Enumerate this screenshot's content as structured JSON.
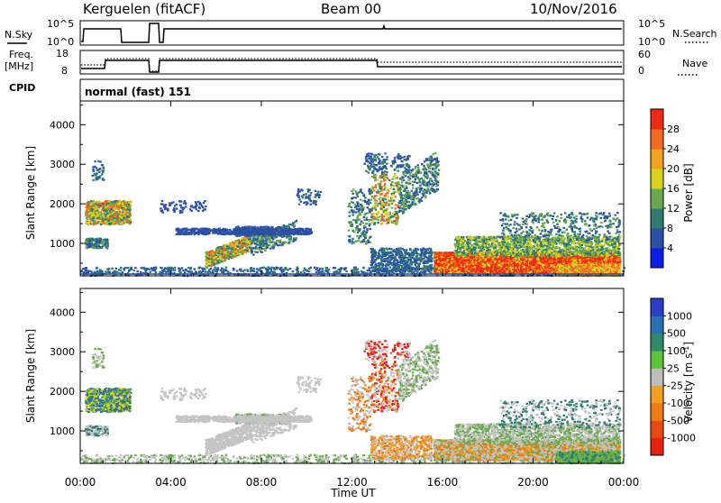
{
  "header": {
    "title": "Kerguelen (fitACF)",
    "beam": "Beam 00",
    "date": "10/Nov/2016"
  },
  "panels": {
    "nsky": {
      "left_label": "N.Sky",
      "left_ticks": [
        "10^5",
        "10^0"
      ],
      "right_ticks": [
        "10^5",
        "10^0"
      ],
      "right_label": "N.Search"
    },
    "freq": {
      "left_label_1": "Freq.",
      "left_label_2": "[MHz]",
      "left_ticks": [
        "18",
        "8"
      ],
      "right_ticks": [
        "60",
        "0"
      ],
      "right_label": "Nave"
    },
    "cpid": {
      "label": "CPID",
      "value": "normal (fast) 151"
    }
  },
  "chart_data": [
    {
      "type": "heatmap",
      "name": "power",
      "ylabel": "Slant Range [km]",
      "ylim": [
        180,
        4600
      ],
      "yticks": [
        1000,
        2000,
        3000,
        4000
      ],
      "xlim_hours": [
        0,
        24
      ],
      "xticks": [
        "00:00",
        "04:00",
        "08:00",
        "12:00",
        "16:00",
        "20:00",
        "00:00"
      ],
      "colorbar": {
        "label": "Power [dB]",
        "range": [
          0,
          32
        ],
        "ticks": [
          "4",
          "8",
          "12",
          "16",
          "20",
          "24",
          "28"
        ],
        "colors": [
          "#0a1ee6",
          "#2c4fa8",
          "#2f7a6e",
          "#6aa84f",
          "#d6d21e",
          "#f2a31e",
          "#f26a1e",
          "#ee2a14"
        ]
      }
    },
    {
      "type": "heatmap",
      "name": "velocity",
      "ylabel": "Slant Range [km]",
      "ylim": [
        180,
        4600
      ],
      "yticks": [
        1000,
        2000,
        3000,
        4000
      ],
      "xlim_hours": [
        0,
        24
      ],
      "xticks": [
        "00:00",
        "04:00",
        "08:00",
        "12:00",
        "16:00",
        "20:00",
        "00:00"
      ],
      "xlabel": "Time UT",
      "colorbar": {
        "label": "Velocity [m s",
        "unit_exp": "-1",
        "unit_close": "]",
        "ticks": [
          "1000",
          "500",
          "100",
          "25",
          "-25",
          "-100",
          "-500",
          "-1000"
        ],
        "colors": [
          "#2a3ec8",
          "#2a6fb5",
          "#2f8a6a",
          "#5cc23a",
          "#bdbdbd",
          "#f0a020",
          "#f07a14",
          "#e84a0e",
          "#e81e0e"
        ]
      }
    }
  ],
  "noise_colors": {
    "low": "#2c4fa8",
    "mid": "#2f7a6e",
    "hi": "#6aa84f",
    "yellow": "#d6d21e",
    "orange": "#f26a1e",
    "red": "#ee2a14",
    "grey": "#c4c4c4"
  }
}
